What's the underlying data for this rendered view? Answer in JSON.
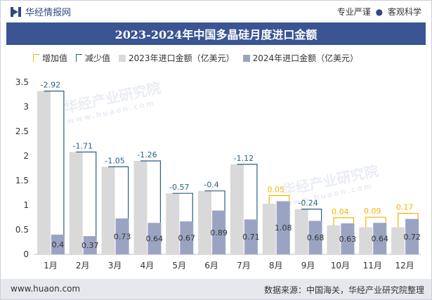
{
  "header": {
    "brand": "华经情报网",
    "tagline_left": "专业严谨",
    "tagline_sep": "●",
    "tagline_right": "客观科学"
  },
  "title": "2023-2024年中国多晶硅月度进口金额",
  "legend": {
    "increase": "增加值",
    "decrease": "减少值",
    "series2023": "2023年进口金额（亿美元）",
    "series2024": "2024年进口金额（亿美元）"
  },
  "watermark": {
    "text": "华经产业研究院",
    "url": "www.huaon.com"
  },
  "footer": {
    "url": "www.huaon.com",
    "source": "数据来源：中国海关，华经产业研究院整理"
  },
  "colors": {
    "series2023": "#d9d9d9",
    "series2024": "#9aa4c2",
    "increase": "#f2b500",
    "decrease": "#2b5f7f",
    "title_bg": "#3a5592"
  },
  "chart_data": {
    "type": "bar",
    "categories": [
      "1月",
      "2月",
      "3月",
      "4月",
      "5月",
      "6月",
      "7月",
      "8月",
      "9月",
      "10月",
      "11月",
      "12月"
    ],
    "ylim": [
      0,
      3.5
    ],
    "yticks": [
      "0",
      "0.5",
      "1",
      "1.5",
      "2",
      "2.5",
      "3",
      "3.5"
    ],
    "yticks_values": [
      0,
      0.5,
      1,
      1.5,
      2,
      2.5,
      3,
      3.5
    ],
    "series": [
      {
        "name": "2023年进口金额（亿美元）",
        "values": [
          3.32,
          2.08,
          1.78,
          1.9,
          1.24,
          1.29,
          1.83,
          1.03,
          0.92,
          0.59,
          0.55,
          0.55
        ]
      },
      {
        "name": "2024年进口金额（亿美元）",
        "values": [
          0.4,
          0.37,
          0.73,
          0.64,
          0.67,
          0.89,
          0.71,
          1.08,
          0.68,
          0.63,
          0.64,
          0.72
        ]
      }
    ],
    "labels_2024": [
      "0.4",
      "0.37",
      "0.73",
      "0.64",
      "0.67",
      "0.89",
      "0.71",
      "1.08",
      "0.68",
      "0.63",
      "0.64",
      "0.72"
    ],
    "change_labels": [
      "-2.92",
      "-1.71",
      "-1.05",
      "-1.26",
      "-0.57",
      "-0.4",
      "-1.12",
      "0.05",
      "-0.24",
      "0.04",
      "0.09",
      "0.17"
    ],
    "change_values": [
      -2.92,
      -1.71,
      -1.05,
      -1.26,
      -0.57,
      -0.4,
      -1.12,
      0.05,
      -0.24,
      0.04,
      0.09,
      0.17
    ],
    "legend_position": "top-left",
    "grid": false
  }
}
